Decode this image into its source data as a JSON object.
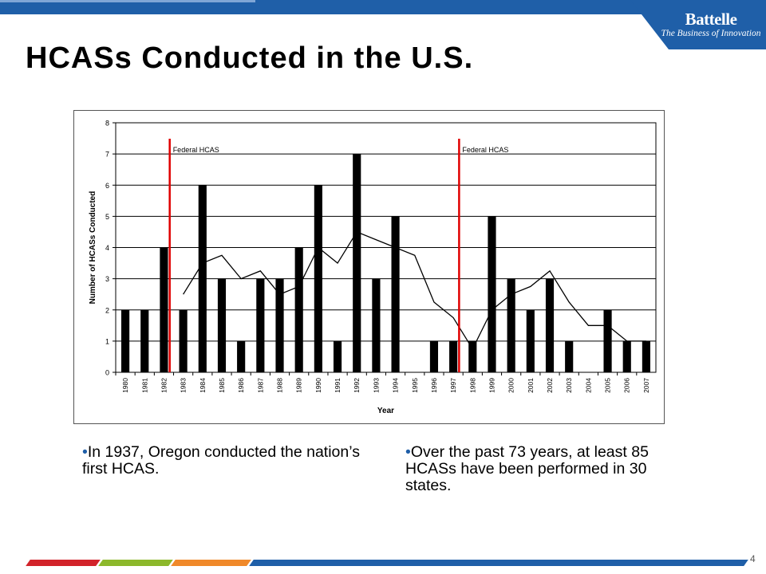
{
  "header": {
    "logo_name": "Battelle",
    "logo_tagline": "The Business of Innovation",
    "brand_color": "#1f5fa8"
  },
  "slide": {
    "title": "HCASs Conducted in the U.S.",
    "page_number": "4"
  },
  "bullets": [
    {
      "marker": "•",
      "text": "In 1937, Oregon conducted the nation’s first HCAS."
    },
    {
      "marker": "•",
      "text": "Over the past 73 years, at least 85 HCASs have been performed in 30 states."
    }
  ],
  "chart_data": {
    "type": "bar",
    "title": "",
    "xlabel": "Year",
    "ylabel": "Number of HCASs Conducted",
    "ylim": [
      0,
      8
    ],
    "yticks": [
      "0",
      "1",
      "2",
      "3",
      "4",
      "5",
      "6",
      "7",
      "8"
    ],
    "grid": true,
    "categories": [
      "1980",
      "1981",
      "1982",
      "1983",
      "1984",
      "1985",
      "1986",
      "1987",
      "1988",
      "1989",
      "1990",
      "1991",
      "1992",
      "1993",
      "1994",
      "1995",
      "1996",
      "1997",
      "1998",
      "1999",
      "2000",
      "2001",
      "2002",
      "2003",
      "2004",
      "2005",
      "2006",
      "2007"
    ],
    "values": [
      2,
      2,
      4,
      2,
      6,
      3,
      1,
      3,
      3,
      4,
      6,
      1,
      7,
      3,
      5,
      0,
      1,
      1,
      1,
      5,
      3,
      2,
      3,
      1,
      0,
      2,
      1,
      1
    ],
    "trend_line": {
      "type": "moving-average",
      "values": [
        null,
        null,
        null,
        2.5,
        3.5,
        3.75,
        3.0,
        3.25,
        2.5,
        2.75,
        4.0,
        3.5,
        4.5,
        4.25,
        4.0,
        3.75,
        2.25,
        1.75,
        0.75,
        2.0,
        2.5,
        2.75,
        3.25,
        2.25,
        1.5,
        1.5,
        1.0,
        1.0
      ]
    },
    "annotations": [
      {
        "label": "Federal HCAS",
        "x": "1982"
      },
      {
        "label": "Federal HCAS",
        "x": "1997"
      }
    ],
    "bar_color": "#000000",
    "annotation_color": "#e00000"
  }
}
